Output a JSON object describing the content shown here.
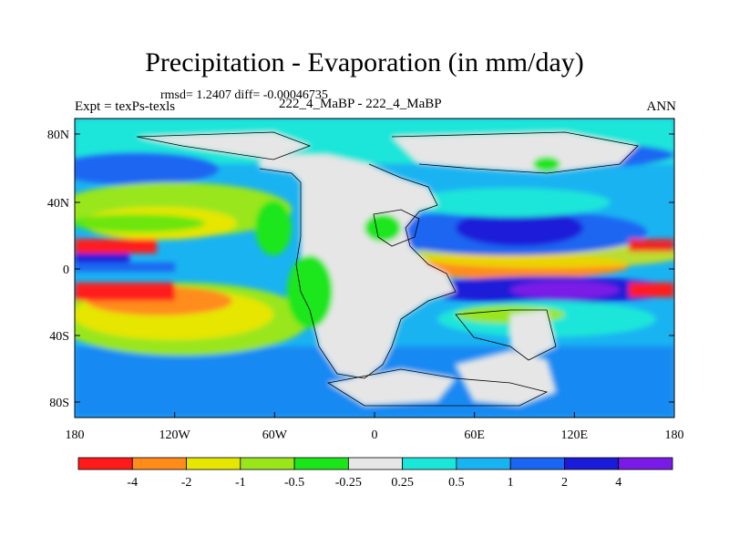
{
  "title": "Precipitation - Evaporation (in mm/day)",
  "stats_line": "rmsd= 1.2407 diff= -0.00046735",
  "left_label": "Expt = texPs-texls",
  "center_label": "222_4_MaBP - 222_4_MaBP",
  "right_label": "ANN",
  "map": {
    "lat_ticks": [
      "80N",
      "40N",
      "0",
      "40S",
      "80S"
    ],
    "lon_ticks": [
      "180",
      "120W",
      "60W",
      "0",
      "60E",
      "120E",
      "180"
    ],
    "colorbar": {
      "colors": [
        "#ff1a1a",
        "#ff8c1a",
        "#e6e600",
        "#99e61a",
        "#1ae61a",
        "#e6e6e6",
        "#1ae6d9",
        "#1ab3f2",
        "#1a66f2",
        "#1a1ad9",
        "#7a1ae6"
      ],
      "labels": [
        "-4",
        "-2",
        "-1",
        "-0.5",
        "-0.25",
        "0.25",
        "0.5",
        "1",
        "2",
        "4"
      ]
    }
  }
}
